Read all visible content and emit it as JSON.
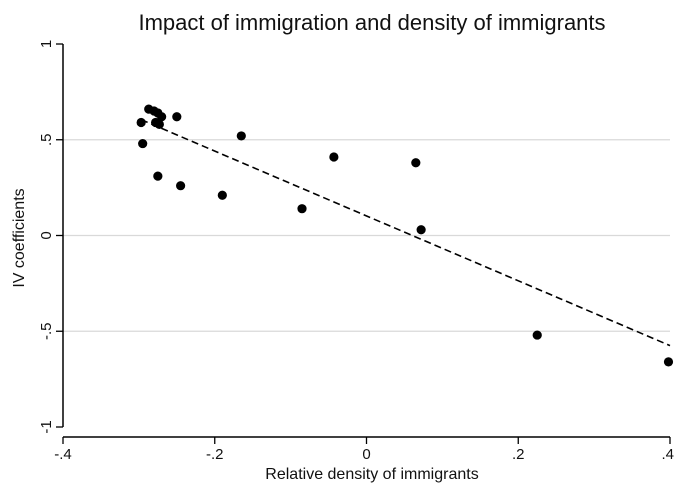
{
  "chart_data": {
    "type": "scatter",
    "title": "Impact of immigration and density of immigrants",
    "xlabel": "Relative density of immigrants",
    "ylabel": "IV coefficients",
    "xlim": [
      -0.4,
      0.4
    ],
    "ylim": [
      -1,
      1
    ],
    "x_ticks": [
      -0.4,
      -0.2,
      0,
      0.2,
      0.4
    ],
    "x_tick_labels": [
      "-.4",
      "-.2",
      "0",
      ".2",
      ".4"
    ],
    "y_ticks": [
      -1,
      -0.5,
      0,
      0.5,
      1
    ],
    "y_tick_labels": [
      "-1",
      "-.5",
      "0",
      ".5",
      "1"
    ],
    "grid": "horizontal",
    "colors": {
      "points": "#000000",
      "fit_line": "#000000",
      "grid": "#d9d9d9",
      "axis": "#000000"
    },
    "points": [
      {
        "x": -0.297,
        "y": 0.59
      },
      {
        "x": -0.295,
        "y": 0.48
      },
      {
        "x": -0.287,
        "y": 0.66
      },
      {
        "x": -0.28,
        "y": 0.65
      },
      {
        "x": -0.278,
        "y": 0.59
      },
      {
        "x": -0.275,
        "y": 0.64
      },
      {
        "x": -0.273,
        "y": 0.58
      },
      {
        "x": -0.27,
        "y": 0.62
      },
      {
        "x": -0.275,
        "y": 0.31
      },
      {
        "x": -0.25,
        "y": 0.62
      },
      {
        "x": -0.245,
        "y": 0.26
      },
      {
        "x": -0.19,
        "y": 0.21
      },
      {
        "x": -0.165,
        "y": 0.52
      },
      {
        "x": -0.085,
        "y": 0.14
      },
      {
        "x": -0.043,
        "y": 0.41
      },
      {
        "x": 0.065,
        "y": 0.38
      },
      {
        "x": 0.072,
        "y": 0.03
      },
      {
        "x": 0.225,
        "y": -0.52
      },
      {
        "x": 0.398,
        "y": -0.66
      }
    ],
    "fit_line": {
      "style": "dashed",
      "x": [
        -0.297,
        0.4
      ],
      "y": [
        0.605,
        -0.575
      ]
    }
  }
}
